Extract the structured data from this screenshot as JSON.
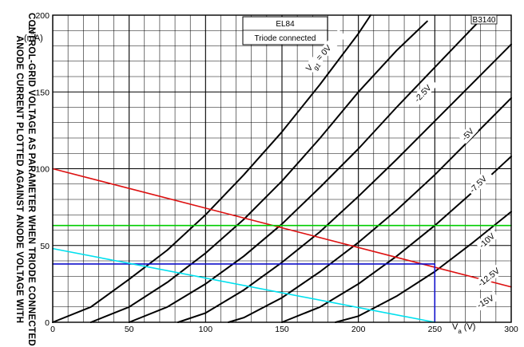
{
  "side_title_line1": "ANODE CURRENT PLOTTED AGAINST ANODE VOLTAGE WITH",
  "side_title_line2": "CONTROL-GRID VOLTAGE AS PARAMETER WHEN TRIODE CONNECTED",
  "tube_type": "EL84",
  "connection": "Triode connected",
  "drawing_number": "B3140",
  "chart_data": {
    "type": "line",
    "xlabel_var": "V",
    "xlabel_sub": "a",
    "xlabel_unit": "(V)",
    "ylabel_var": "I",
    "ylabel_sub": "a",
    "ylabel_unit": "(mA)",
    "xlim": [
      0,
      300
    ],
    "ylim": [
      0,
      200
    ],
    "x_ticks": [
      0,
      50,
      100,
      150,
      200,
      250,
      300
    ],
    "y_ticks": [
      0,
      50,
      100,
      150,
      200
    ],
    "grid": true,
    "series": [
      {
        "name": "Vg1 = 0V",
        "color": "#000000",
        "points": [
          [
            0,
            0
          ],
          [
            25,
            10
          ],
          [
            50,
            28
          ],
          [
            75,
            47
          ],
          [
            100,
            70
          ],
          [
            125,
            96
          ],
          [
            150,
            124
          ],
          [
            175,
            155
          ],
          [
            200,
            188
          ],
          [
            208,
            200
          ]
        ]
      },
      {
        "name": "-2.5V",
        "color": "#000000",
        "points": [
          [
            25,
            0
          ],
          [
            50,
            10
          ],
          [
            75,
            26
          ],
          [
            100,
            45
          ],
          [
            125,
            67
          ],
          [
            150,
            92
          ],
          [
            175,
            120
          ],
          [
            200,
            150
          ],
          [
            225,
            177
          ],
          [
            245,
            196
          ]
        ]
      },
      {
        "name": "-5V",
        "color": "#000000",
        "points": [
          [
            50,
            0
          ],
          [
            75,
            10
          ],
          [
            100,
            25
          ],
          [
            125,
            43
          ],
          [
            150,
            64
          ],
          [
            175,
            88
          ],
          [
            200,
            113
          ],
          [
            225,
            140
          ],
          [
            250,
            166
          ],
          [
            275,
            192
          ],
          [
            279,
            196
          ]
        ]
      },
      {
        "name": "-7.5V",
        "color": "#000000",
        "points": [
          [
            82,
            0
          ],
          [
            100,
            6
          ],
          [
            125,
            21
          ],
          [
            150,
            39
          ],
          [
            175,
            59
          ],
          [
            200,
            82
          ],
          [
            225,
            106
          ],
          [
            250,
            131
          ],
          [
            275,
            156
          ],
          [
            300,
            181
          ]
        ]
      },
      {
        "name": "-10V",
        "color": "#000000",
        "points": [
          [
            115,
            0
          ],
          [
            125,
            3
          ],
          [
            150,
            16
          ],
          [
            175,
            33
          ],
          [
            200,
            52
          ],
          [
            225,
            73
          ],
          [
            250,
            96
          ],
          [
            275,
            121
          ],
          [
            300,
            146
          ]
        ]
      },
      {
        "name": "-12.5V",
        "color": "#000000",
        "points": [
          [
            150,
            0
          ],
          [
            175,
            10
          ],
          [
            200,
            25
          ],
          [
            225,
            43
          ],
          [
            250,
            63
          ],
          [
            275,
            85
          ],
          [
            300,
            108
          ]
        ]
      },
      {
        "name": "-15V",
        "color": "#000000",
        "points": [
          [
            185,
            0
          ],
          [
            200,
            4
          ],
          [
            225,
            17
          ],
          [
            250,
            33
          ],
          [
            275,
            52
          ],
          [
            300,
            72
          ]
        ]
      },
      {
        "name": "",
        "color": "#dd1111",
        "points": [
          [
            0,
            100
          ],
          [
            300,
            23
          ]
        ]
      },
      {
        "name": "",
        "color": "#00cc00",
        "points": [
          [
            0,
            63
          ],
          [
            300,
            63
          ]
        ]
      },
      {
        "name": "",
        "color": "#1111cc",
        "points": [
          [
            0,
            38
          ],
          [
            250,
            38
          ],
          [
            250,
            0
          ]
        ]
      },
      {
        "name": "",
        "color": "#00e0ee",
        "points": [
          [
            0,
            48
          ],
          [
            250,
            0
          ]
        ]
      }
    ],
    "curve_labels": [
      {
        "series": "Vg1 = 0V",
        "prefix": "V",
        "sub": "g1",
        "suffix": " = 0V",
        "x": 168,
        "y": 163,
        "angle": -47
      },
      {
        "series": "-2.5V",
        "text": "-2.5V",
        "x": 239,
        "y": 143,
        "angle": -47
      },
      {
        "series": "-5V",
        "text": "-5V",
        "x": 270,
        "y": 118,
        "angle": -47
      },
      {
        "series": "-7.5V",
        "text": "-7.5V",
        "x": 275,
        "y": 84,
        "angle": -45
      },
      {
        "series": "-10V",
        "text": "-10V",
        "x": 281,
        "y": 48,
        "angle": -42
      },
      {
        "series": "-12.5V",
        "text": "-12.5V",
        "x": 280,
        "y": 23,
        "angle": -38
      },
      {
        "series": "-15V",
        "text": "-15V",
        "x": 279,
        "y": 9,
        "angle": -30
      }
    ]
  }
}
